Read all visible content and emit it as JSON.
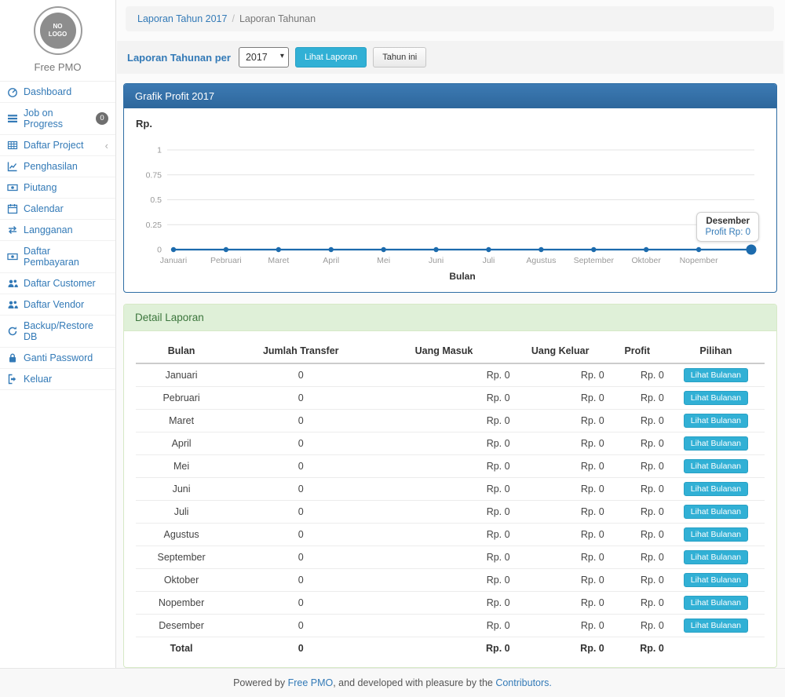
{
  "sidebar": {
    "logo_text": "NO\nLOGO",
    "brand": "Free PMO",
    "items": [
      {
        "label": "Dashboard",
        "icon": "dashboard-icon"
      },
      {
        "label": "Job on Progress",
        "icon": "tasks-icon",
        "badge": "0"
      },
      {
        "label": "Daftar Project",
        "icon": "table-icon",
        "chevron": "‹"
      },
      {
        "label": "Penghasilan",
        "icon": "line-chart-icon"
      },
      {
        "label": "Piutang",
        "icon": "money-icon"
      },
      {
        "label": "Calendar",
        "icon": "calendar-icon"
      },
      {
        "label": "Langganan",
        "icon": "retweet-icon"
      },
      {
        "label": "Daftar Pembayaran",
        "icon": "money-icon"
      },
      {
        "label": "Daftar Customer",
        "icon": "users-icon"
      },
      {
        "label": "Daftar Vendor",
        "icon": "users-icon"
      },
      {
        "label": "Backup/Restore DB",
        "icon": "refresh-icon"
      },
      {
        "label": "Ganti Password",
        "icon": "lock-icon"
      },
      {
        "label": "Keluar",
        "icon": "signout-icon"
      }
    ]
  },
  "breadcrumb": {
    "link": "Laporan Tahun 2017",
    "current": "Laporan Tahunan"
  },
  "filter": {
    "label": "Laporan Tahunan per",
    "year": "2017",
    "submit_label": "Lihat Laporan",
    "this_year_label": "Tahun ini"
  },
  "chart_panel": {
    "title": "Grafik Profit 2017"
  },
  "chart_data": {
    "type": "line",
    "title": "Grafik Profit 2017",
    "ylabel": "Rp.",
    "xlabel": "Bulan",
    "categories": [
      "Januari",
      "Pebruari",
      "Maret",
      "April",
      "Mei",
      "Juni",
      "Juli",
      "Agustus",
      "September",
      "Oktober",
      "Nopember",
      "Desember"
    ],
    "values": [
      0,
      0,
      0,
      0,
      0,
      0,
      0,
      0,
      0,
      0,
      0,
      0
    ],
    "yticks": [
      1,
      0.75,
      0.5,
      0.25,
      0
    ],
    "ylim": [
      0,
      1
    ],
    "grid": true,
    "line_color": "#1c6bad",
    "tooltip": {
      "title": "Desember",
      "text": "Profit Rp: 0"
    }
  },
  "report": {
    "title": "Detail Laporan",
    "columns": [
      "Bulan",
      "Jumlah Transfer",
      "Uang Masuk",
      "Uang Keluar",
      "Profit",
      "Pilihan"
    ],
    "action_label": "Lihat Bulanan",
    "rows": [
      [
        "Januari",
        "0",
        "Rp. 0",
        "Rp. 0",
        "Rp. 0"
      ],
      [
        "Pebruari",
        "0",
        "Rp. 0",
        "Rp. 0",
        "Rp. 0"
      ],
      [
        "Maret",
        "0",
        "Rp. 0",
        "Rp. 0",
        "Rp. 0"
      ],
      [
        "April",
        "0",
        "Rp. 0",
        "Rp. 0",
        "Rp. 0"
      ],
      [
        "Mei",
        "0",
        "Rp. 0",
        "Rp. 0",
        "Rp. 0"
      ],
      [
        "Juni",
        "0",
        "Rp. 0",
        "Rp. 0",
        "Rp. 0"
      ],
      [
        "Juli",
        "0",
        "Rp. 0",
        "Rp. 0",
        "Rp. 0"
      ],
      [
        "Agustus",
        "0",
        "Rp. 0",
        "Rp. 0",
        "Rp. 0"
      ],
      [
        "September",
        "0",
        "Rp. 0",
        "Rp. 0",
        "Rp. 0"
      ],
      [
        "Oktober",
        "0",
        "Rp. 0",
        "Rp. 0",
        "Rp. 0"
      ],
      [
        "Nopember",
        "0",
        "Rp. 0",
        "Rp. 0",
        "Rp. 0"
      ],
      [
        "Desember",
        "0",
        "Rp. 0",
        "Rp. 0",
        "Rp. 0"
      ]
    ],
    "total": [
      "Total",
      "0",
      "Rp. 0",
      "Rp. 0",
      "Rp. 0"
    ]
  },
  "footer": {
    "prefix": "Powered by ",
    "link1": "Free PMO",
    "middle": ", and developed with pleasure by the ",
    "link2": "Contributors."
  },
  "colors": {
    "accent_blue": "#337ab7",
    "panel_blue": "#2e6da4",
    "cyan_button": "#31b0d5",
    "green_header_bg": "#dff0d8",
    "green_header_text": "#3c763d"
  }
}
